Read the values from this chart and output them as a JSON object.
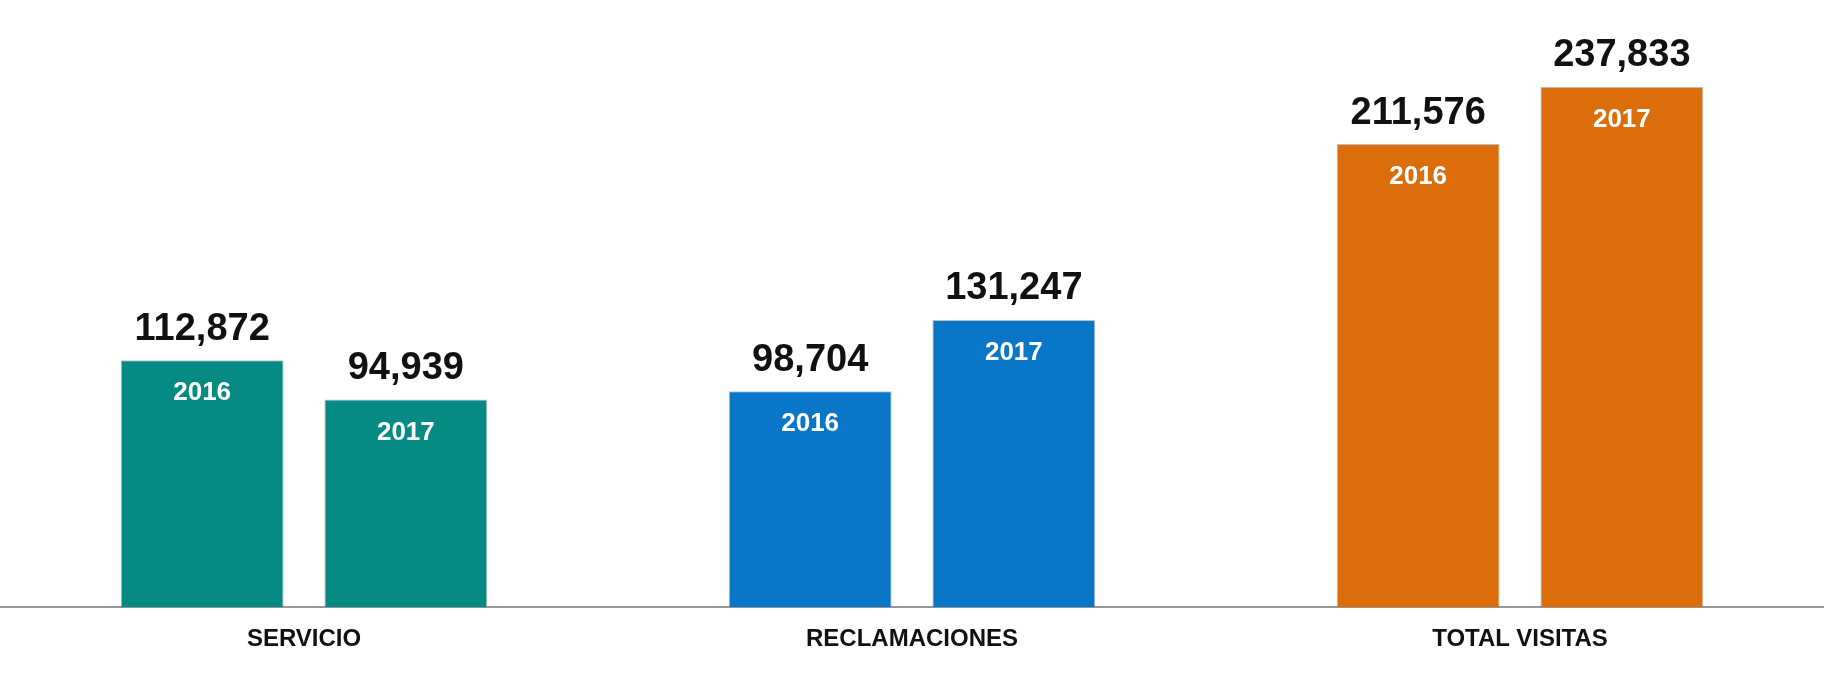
{
  "chart_data": {
    "type": "bar",
    "categories": [
      "SERVICIO",
      "RECLAMACIONES",
      "TOTAL VISITAS"
    ],
    "series": [
      {
        "name": "2016",
        "colors": [
          "#068a84",
          "#0a76c8",
          "#db6d0a"
        ],
        "values": [
          112872,
          98704,
          211576
        ],
        "value_labels": [
          "112,872",
          "98,704",
          "211,576"
        ]
      },
      {
        "name": "2017",
        "colors": [
          "#068a84",
          "#0a76c8",
          "#db6d0a"
        ],
        "values": [
          94939,
          131247,
          237833
        ],
        "value_labels": [
          "94,939",
          "131,247",
          "237,833"
        ]
      }
    ],
    "legend": false,
    "grid": false
  }
}
